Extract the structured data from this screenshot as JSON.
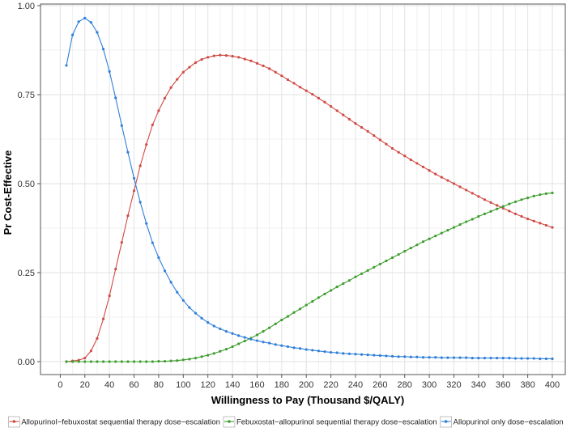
{
  "chart_data": {
    "type": "line",
    "title": "",
    "xlabel": "Willingness to Pay (Thousand $/QALY)",
    "ylabel": "Pr Cost-Effective",
    "xlim": [
      5,
      400
    ],
    "ylim": [
      0,
      1
    ],
    "x_ticks": [
      0,
      20,
      40,
      60,
      80,
      100,
      120,
      140,
      160,
      180,
      200,
      220,
      240,
      260,
      280,
      300,
      320,
      340,
      360,
      380,
      400
    ],
    "y_ticks": [
      0,
      0.25,
      0.5,
      0.75,
      1
    ],
    "y_tick_labels": [
      "0.00",
      "0.25",
      "0.50",
      "0.75",
      "1.00"
    ],
    "grid": true,
    "legend_position": "bottom",
    "series": [
      {
        "name": "Allopurinol−febuxostat sequential therapy dose−escalation",
        "color": "#d04a45",
        "points": [
          [
            5,
            0
          ],
          [
            10,
            0.002
          ],
          [
            15,
            0.004
          ],
          [
            20,
            0.01
          ],
          [
            25,
            0.03
          ],
          [
            30,
            0.065
          ],
          [
            35,
            0.12
          ],
          [
            40,
            0.185
          ],
          [
            45,
            0.26
          ],
          [
            50,
            0.335
          ],
          [
            55,
            0.41
          ],
          [
            60,
            0.48
          ],
          [
            65,
            0.55
          ],
          [
            70,
            0.61
          ],
          [
            75,
            0.665
          ],
          [
            80,
            0.705
          ],
          [
            85,
            0.74
          ],
          [
            90,
            0.77
          ],
          [
            95,
            0.793
          ],
          [
            100,
            0.813
          ],
          [
            105,
            0.827
          ],
          [
            110,
            0.84
          ],
          [
            115,
            0.849
          ],
          [
            120,
            0.855
          ],
          [
            125,
            0.859
          ],
          [
            130,
            0.861
          ],
          [
            135,
            0.86
          ],
          [
            140,
            0.858
          ],
          [
            145,
            0.855
          ],
          [
            150,
            0.85
          ],
          [
            155,
            0.845
          ],
          [
            160,
            0.838
          ],
          [
            165,
            0.831
          ],
          [
            170,
            0.823
          ],
          [
            175,
            0.813
          ],
          [
            180,
            0.803
          ],
          [
            185,
            0.792
          ],
          [
            190,
            0.782
          ],
          [
            195,
            0.771
          ],
          [
            200,
            0.761
          ],
          [
            205,
            0.751
          ],
          [
            210,
            0.74
          ],
          [
            215,
            0.729
          ],
          [
            220,
            0.717
          ],
          [
            225,
            0.705
          ],
          [
            230,
            0.693
          ],
          [
            235,
            0.681
          ],
          [
            240,
            0.669
          ],
          [
            245,
            0.658
          ],
          [
            250,
            0.647
          ],
          [
            255,
            0.635
          ],
          [
            260,
            0.623
          ],
          [
            265,
            0.611
          ],
          [
            270,
            0.599
          ],
          [
            275,
            0.588
          ],
          [
            280,
            0.578
          ],
          [
            285,
            0.567
          ],
          [
            290,
            0.557
          ],
          [
            295,
            0.547
          ],
          [
            300,
            0.537
          ],
          [
            305,
            0.527
          ],
          [
            310,
            0.518
          ],
          [
            315,
            0.509
          ],
          [
            320,
            0.5
          ],
          [
            325,
            0.491
          ],
          [
            330,
            0.482
          ],
          [
            335,
            0.473
          ],
          [
            340,
            0.464
          ],
          [
            345,
            0.455
          ],
          [
            350,
            0.447
          ],
          [
            355,
            0.439
          ],
          [
            360,
            0.431
          ],
          [
            365,
            0.423
          ],
          [
            370,
            0.415
          ],
          [
            375,
            0.408
          ],
          [
            380,
            0.401
          ],
          [
            385,
            0.395
          ],
          [
            390,
            0.389
          ],
          [
            395,
            0.383
          ],
          [
            400,
            0.377
          ]
        ]
      },
      {
        "name": "Febuxostat−allopurinol sequential therapy dose−escalation",
        "color": "#3f9e2f",
        "points": [
          [
            5,
            0
          ],
          [
            10,
            0
          ],
          [
            15,
            0
          ],
          [
            20,
            0
          ],
          [
            25,
            0
          ],
          [
            30,
            0
          ],
          [
            35,
            0
          ],
          [
            40,
            0
          ],
          [
            45,
            0
          ],
          [
            50,
            0
          ],
          [
            55,
            0
          ],
          [
            60,
            0
          ],
          [
            65,
            0
          ],
          [
            70,
            0
          ],
          [
            75,
            0
          ],
          [
            80,
            0.001
          ],
          [
            85,
            0.001
          ],
          [
            90,
            0.002
          ],
          [
            95,
            0.003
          ],
          [
            100,
            0.005
          ],
          [
            105,
            0.007
          ],
          [
            110,
            0.01
          ],
          [
            115,
            0.014
          ],
          [
            120,
            0.018
          ],
          [
            125,
            0.023
          ],
          [
            130,
            0.029
          ],
          [
            135,
            0.035
          ],
          [
            140,
            0.042
          ],
          [
            145,
            0.05
          ],
          [
            150,
            0.058
          ],
          [
            155,
            0.066
          ],
          [
            160,
            0.075
          ],
          [
            165,
            0.085
          ],
          [
            170,
            0.095
          ],
          [
            175,
            0.106
          ],
          [
            180,
            0.117
          ],
          [
            185,
            0.127
          ],
          [
            190,
            0.138
          ],
          [
            195,
            0.148
          ],
          [
            200,
            0.159
          ],
          [
            205,
            0.169
          ],
          [
            210,
            0.18
          ],
          [
            215,
            0.19
          ],
          [
            220,
            0.2
          ],
          [
            225,
            0.21
          ],
          [
            230,
            0.219
          ],
          [
            235,
            0.228
          ],
          [
            240,
            0.238
          ],
          [
            245,
            0.247
          ],
          [
            250,
            0.256
          ],
          [
            255,
            0.265
          ],
          [
            260,
            0.274
          ],
          [
            265,
            0.283
          ],
          [
            270,
            0.292
          ],
          [
            275,
            0.301
          ],
          [
            280,
            0.31
          ],
          [
            285,
            0.319
          ],
          [
            290,
            0.328
          ],
          [
            295,
            0.337
          ],
          [
            300,
            0.345
          ],
          [
            305,
            0.353
          ],
          [
            310,
            0.361
          ],
          [
            315,
            0.369
          ],
          [
            320,
            0.377
          ],
          [
            325,
            0.385
          ],
          [
            330,
            0.393
          ],
          [
            335,
            0.4
          ],
          [
            340,
            0.408
          ],
          [
            345,
            0.415
          ],
          [
            350,
            0.422
          ],
          [
            355,
            0.429
          ],
          [
            360,
            0.436
          ],
          [
            365,
            0.443
          ],
          [
            370,
            0.449
          ],
          [
            375,
            0.455
          ],
          [
            380,
            0.46
          ],
          [
            385,
            0.465
          ],
          [
            390,
            0.469
          ],
          [
            395,
            0.472
          ],
          [
            400,
            0.474
          ]
        ]
      },
      {
        "name": "Allopurinol only dose−escalation",
        "color": "#2f7fd8",
        "points": [
          [
            5,
            0.832
          ],
          [
            10,
            0.918
          ],
          [
            15,
            0.955
          ],
          [
            20,
            0.965
          ],
          [
            25,
            0.953
          ],
          [
            30,
            0.925
          ],
          [
            35,
            0.878
          ],
          [
            40,
            0.815
          ],
          [
            45,
            0.741
          ],
          [
            50,
            0.663
          ],
          [
            55,
            0.588
          ],
          [
            60,
            0.515
          ],
          [
            65,
            0.448
          ],
          [
            70,
            0.388
          ],
          [
            75,
            0.334
          ],
          [
            80,
            0.292
          ],
          [
            85,
            0.255
          ],
          [
            90,
            0.223
          ],
          [
            95,
            0.195
          ],
          [
            100,
            0.172
          ],
          [
            105,
            0.152
          ],
          [
            110,
            0.136
          ],
          [
            115,
            0.122
          ],
          [
            120,
            0.11
          ],
          [
            125,
            0.1
          ],
          [
            130,
            0.092
          ],
          [
            135,
            0.085
          ],
          [
            140,
            0.079
          ],
          [
            145,
            0.073
          ],
          [
            150,
            0.068
          ],
          [
            155,
            0.063
          ],
          [
            160,
            0.059
          ],
          [
            165,
            0.055
          ],
          [
            170,
            0.052
          ],
          [
            175,
            0.048
          ],
          [
            180,
            0.045
          ],
          [
            185,
            0.042
          ],
          [
            190,
            0.039
          ],
          [
            195,
            0.037
          ],
          [
            200,
            0.034
          ],
          [
            205,
            0.032
          ],
          [
            210,
            0.03
          ],
          [
            215,
            0.028
          ],
          [
            220,
            0.026
          ],
          [
            225,
            0.025
          ],
          [
            230,
            0.023
          ],
          [
            235,
            0.022
          ],
          [
            240,
            0.021
          ],
          [
            245,
            0.02
          ],
          [
            250,
            0.019
          ],
          [
            255,
            0.018
          ],
          [
            260,
            0.017
          ],
          [
            265,
            0.016
          ],
          [
            270,
            0.015
          ],
          [
            275,
            0.014
          ],
          [
            280,
            0.014
          ],
          [
            285,
            0.013
          ],
          [
            290,
            0.013
          ],
          [
            295,
            0.012
          ],
          [
            300,
            0.012
          ],
          [
            305,
            0.012
          ],
          [
            310,
            0.011
          ],
          [
            315,
            0.011
          ],
          [
            320,
            0.011
          ],
          [
            325,
            0.011
          ],
          [
            330,
            0.011
          ],
          [
            335,
            0.01
          ],
          [
            340,
            0.01
          ],
          [
            345,
            0.01
          ],
          [
            350,
            0.01
          ],
          [
            355,
            0.01
          ],
          [
            360,
            0.01
          ],
          [
            365,
            0.01
          ],
          [
            370,
            0.009
          ],
          [
            375,
            0.009
          ],
          [
            380,
            0.009
          ],
          [
            385,
            0.009
          ],
          [
            390,
            0.008
          ],
          [
            395,
            0.008
          ],
          [
            400,
            0.008
          ]
        ]
      }
    ]
  }
}
